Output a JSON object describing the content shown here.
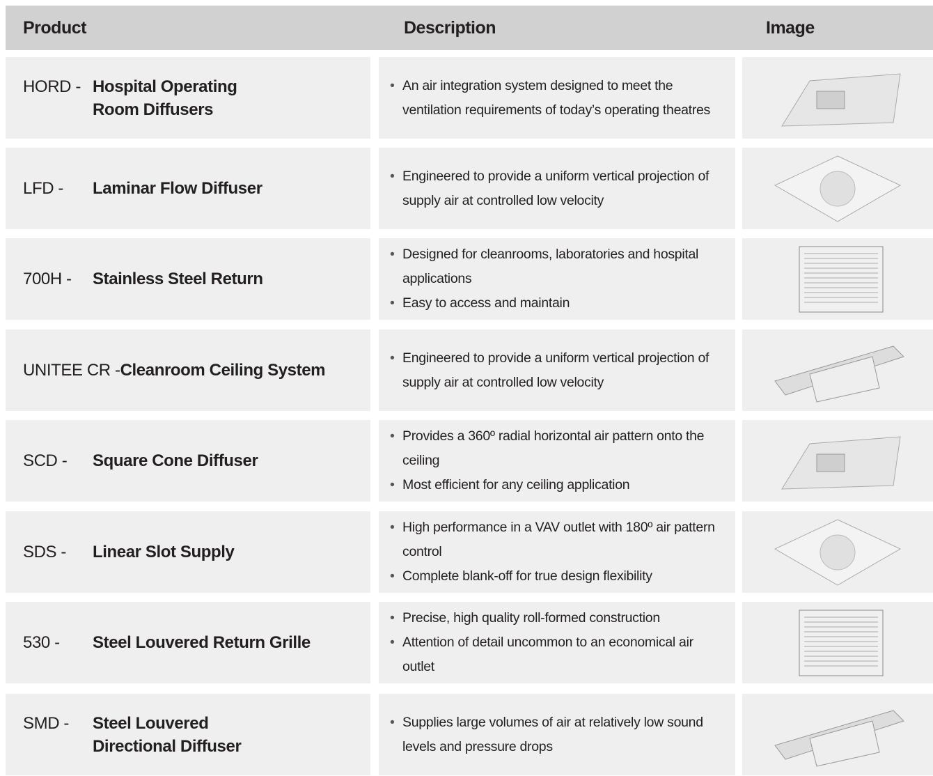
{
  "header": {
    "product": "Product",
    "description": "Description",
    "image": "Image"
  },
  "rows": [
    {
      "code": "HORD -",
      "name": [
        "Hospital Operating",
        "Room Diffusers"
      ],
      "bullets": [
        "An air integration system designed to meet the ventilation requirements of today’s operating theatres"
      ]
    },
    {
      "code": "LFD -",
      "name": [
        "Laminar Flow Diffuser"
      ],
      "bullets": [
        "Engineered to provide a uniform vertical projection of supply air at controlled low velocity"
      ]
    },
    {
      "code": "700H -",
      "name": [
        "Stainless Steel Return"
      ],
      "bullets": [
        "Designed for cleanrooms, laboratories and hospital applications",
        "Easy to access and maintain"
      ]
    },
    {
      "code": "UNITEE CR -",
      "name": [
        "Cleanroom Ceiling System"
      ],
      "bullets": [
        "Engineered to provide a uniform vertical projection of supply air at controlled low velocity"
      ]
    },
    {
      "code": "SCD -",
      "name": [
        "Square Cone Diffuser"
      ],
      "bullets": [
        "Provides a 360º radial horizontal air pattern onto the ceiling",
        "Most efficient for any ceiling application"
      ]
    },
    {
      "code": "SDS -",
      "name": [
        "Linear Slot Supply"
      ],
      "bullets": [
        "High performance in a VAV outlet with 180º air pattern control",
        "Complete blank-off for true design flexibility"
      ]
    },
    {
      "code": "530 -",
      "name": [
        "Steel Louvered Return Grille"
      ],
      "bullets": [
        "Precise, high quality roll-formed construction",
        "Attention of detail uncommon to an economical air outlet"
      ]
    },
    {
      "code": "SMD -",
      "name": [
        "Steel Louvered",
        "Directional Diffuser"
      ],
      "bullets": [
        "Supplies large volumes of air at relatively low sound levels and pressure drops"
      ]
    }
  ]
}
